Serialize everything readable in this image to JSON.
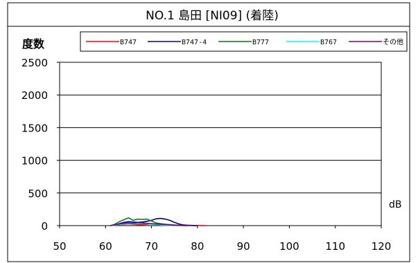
{
  "chart_data": {
    "type": "line",
    "title": "NO.1 島田 [NI09] (着陸)",
    "ylabel": "度数",
    "xlabel": "dB",
    "x_ticks": [
      50,
      60,
      70,
      80,
      90,
      100,
      110,
      120
    ],
    "y_ticks": [
      0,
      500,
      1000,
      1500,
      2000,
      2500
    ],
    "xlim": [
      50,
      120
    ],
    "ylim": [
      0,
      2500
    ],
    "grid": "horizontal",
    "legend_position": "top",
    "series": [
      {
        "name": "B747",
        "color": "#ff0000",
        "x": [
          61,
          62,
          63,
          64,
          65,
          66,
          67,
          68,
          69,
          70,
          71,
          72,
          73,
          74,
          75,
          76,
          77,
          78,
          79,
          80,
          81,
          82
        ],
        "y": [
          0,
          5,
          15,
          20,
          25,
          20,
          15,
          15,
          20,
          25,
          20,
          15,
          10,
          10,
          8,
          5,
          5,
          3,
          2,
          2,
          1,
          0
        ]
      },
      {
        "name": "B747-4",
        "color": "#000080",
        "x": [
          61,
          62,
          63,
          64,
          65,
          66,
          67,
          68,
          69,
          70,
          71,
          72,
          73,
          74,
          75,
          76,
          77,
          78,
          79,
          80
        ],
        "y": [
          0,
          10,
          30,
          50,
          60,
          55,
          50,
          55,
          65,
          80,
          105,
          110,
          100,
          80,
          50,
          25,
          10,
          5,
          2,
          0
        ]
      },
      {
        "name": "B777",
        "color": "#008000",
        "x": [
          61,
          62,
          63,
          64,
          65,
          66,
          67,
          68,
          69,
          70,
          71,
          72,
          73,
          74,
          75,
          76,
          77,
          78
        ],
        "y": [
          0,
          20,
          60,
          90,
          120,
          80,
          100,
          95,
          100,
          70,
          40,
          30,
          20,
          15,
          10,
          5,
          2,
          0
        ]
      },
      {
        "name": "B767",
        "color": "#00ffff",
        "x": [
          61,
          62,
          63,
          64,
          65,
          66,
          67,
          68,
          69,
          70,
          71,
          72,
          73,
          74,
          75,
          76
        ],
        "y": [
          0,
          5,
          15,
          25,
          30,
          25,
          30,
          35,
          30,
          20,
          15,
          10,
          5,
          3,
          1,
          0
        ]
      },
      {
        "name": "その他",
        "color": "#800080",
        "x": [
          61,
          62,
          63,
          64,
          65,
          66,
          67,
          68,
          69,
          70,
          71,
          72,
          73,
          74,
          75,
          76,
          77,
          78
        ],
        "y": [
          0,
          10,
          25,
          35,
          40,
          35,
          45,
          40,
          35,
          30,
          25,
          20,
          15,
          10,
          5,
          3,
          1,
          0
        ]
      }
    ]
  }
}
